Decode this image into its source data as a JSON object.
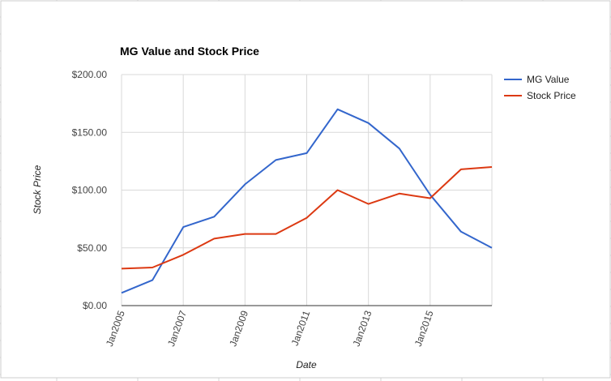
{
  "chart_data": {
    "type": "line",
    "title": "MG Value and Stock Price",
    "xlabel": "Date",
    "ylabel": "Stock Price",
    "x": [
      "2005",
      "2006",
      "2007",
      "2008",
      "2009",
      "2010",
      "2011",
      "2012",
      "2013",
      "2014",
      "2015",
      "2016",
      "2017"
    ],
    "x_tick_labels": [
      "Jan2005",
      "Jan2007",
      "Jan2009",
      "Jan2011",
      "Jan2013",
      "Jan2015"
    ],
    "y_tick_labels": [
      "$0.00",
      "$50.00",
      "$100.00",
      "$150.00",
      "$200.00"
    ],
    "ylim": [
      0,
      200
    ],
    "grid": true,
    "legend_position": "right",
    "series": [
      {
        "name": "MG Value",
        "color": "#3366cc",
        "values": [
          11,
          22,
          68,
          77,
          105,
          126,
          132,
          170,
          158,
          136,
          96,
          64,
          50
        ]
      },
      {
        "name": "Stock Price",
        "color": "#dc3912",
        "values": [
          32,
          33,
          44,
          58,
          62,
          62,
          76,
          100,
          88,
          97,
          93,
          118,
          120
        ]
      }
    ]
  }
}
